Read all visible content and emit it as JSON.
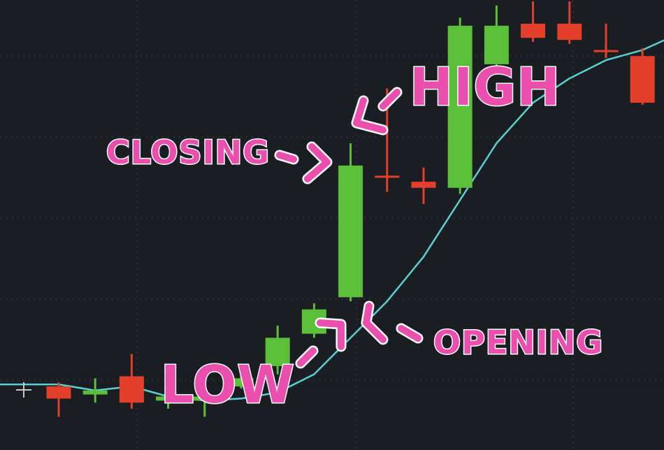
{
  "chart_data": {
    "type": "candlestick",
    "grid": true,
    "colors": {
      "up": "#5cbf3a",
      "down": "#e2402b",
      "ma_line": "#5ccfd0",
      "grid": "#3a3e46",
      "annotation": "#ea4fae"
    },
    "ylim": [
      0,
      100
    ],
    "candles": [
      {
        "open": 15.0,
        "close": 12.0,
        "high": 16.0,
        "low": 7.5
      },
      {
        "open": 13.0,
        "close": 14.0,
        "high": 17.0,
        "low": 11.0
      },
      {
        "open": 17.5,
        "close": 11.0,
        "high": 23.0,
        "low": 9.5
      },
      {
        "open": 11.5,
        "close": 12.5,
        "high": 16.0,
        "low": 9.5
      },
      {
        "open": 11.5,
        "close": 12.5,
        "high": 15.0,
        "low": 7.5
      },
      {
        "open": 15.0,
        "close": 17.0,
        "high": 19.0,
        "low": 14.5
      },
      {
        "open": 20.0,
        "close": 27.0,
        "high": 30.0,
        "low": 18.0
      },
      {
        "open": 28.0,
        "close": 34.0,
        "high": 35.5,
        "low": 27.0
      },
      {
        "open": 37.0,
        "close": 69.5,
        "high": 75.0,
        "low": 36.0
      },
      {
        "open": 67.0,
        "close": 66.5,
        "high": 88.5,
        "low": 63.0
      },
      {
        "open": 65.5,
        "close": 64.0,
        "high": 69.0,
        "low": 60.0
      },
      {
        "open": 64.0,
        "close": 104.0,
        "high": 106.0,
        "low": 62.5
      },
      {
        "open": 94.5,
        "close": 104.0,
        "high": 109.0,
        "low": 94.0
      },
      {
        "open": 104.5,
        "close": 101.0,
        "high": 110.0,
        "low": 100.0
      },
      {
        "open": 104.5,
        "close": 100.5,
        "high": 110.0,
        "low": 99.5
      },
      {
        "open": 98.0,
        "close": 97.5,
        "high": 104.5,
        "low": 96.0
      },
      {
        "open": 96.5,
        "close": 85.0,
        "high": 98.5,
        "low": 84.5
      }
    ],
    "moving_average": [
      15.5,
      14.0,
      15.0,
      12.5,
      11.5,
      12.0,
      13.5,
      18.0,
      27.0,
      36.0,
      47.0,
      61.0,
      75.0,
      85.0,
      91.0,
      95.5,
      98.0
    ]
  },
  "annotations": {
    "high": "HIGH",
    "closing": "CLOSING",
    "low": "LOW",
    "opening": "OPENING"
  }
}
